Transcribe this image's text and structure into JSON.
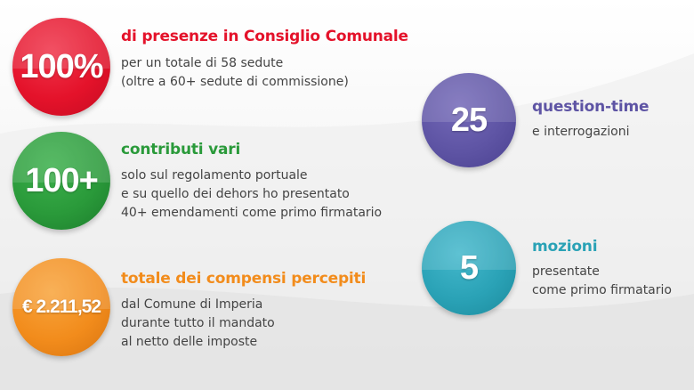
{
  "colors": {
    "red": "#e4122a",
    "green": "#2a9a3a",
    "orange": "#f28c1c",
    "purple": "#5e54a4",
    "teal": "#2aa2b6",
    "text": "#444444"
  },
  "stats": {
    "presenze": {
      "value": "100%",
      "title": "di presenze in Consiglio Comunale",
      "lines": [
        "per un totale di 58 sedute",
        "(oltre a 60+ sedute di commissione)"
      ]
    },
    "contributi": {
      "value": "100+",
      "title": "contributi vari",
      "lines": [
        "solo sul regolamento portuale",
        "e su quello dei dehors ho presentato",
        "40+ emendamenti come primo firmatario"
      ]
    },
    "compensi": {
      "value": "€ 2.211,52",
      "title": "totale dei compensi percepiti",
      "lines": [
        "dal Comune di Imperia",
        "durante tutto il mandato",
        "al netto delle imposte"
      ]
    },
    "question_time": {
      "value": "25",
      "title": "question-time",
      "lines": [
        "e interrogazioni"
      ]
    },
    "mozioni": {
      "value": "5",
      "title": "mozioni",
      "lines": [
        "presentate",
        "come primo firmatario"
      ]
    }
  }
}
